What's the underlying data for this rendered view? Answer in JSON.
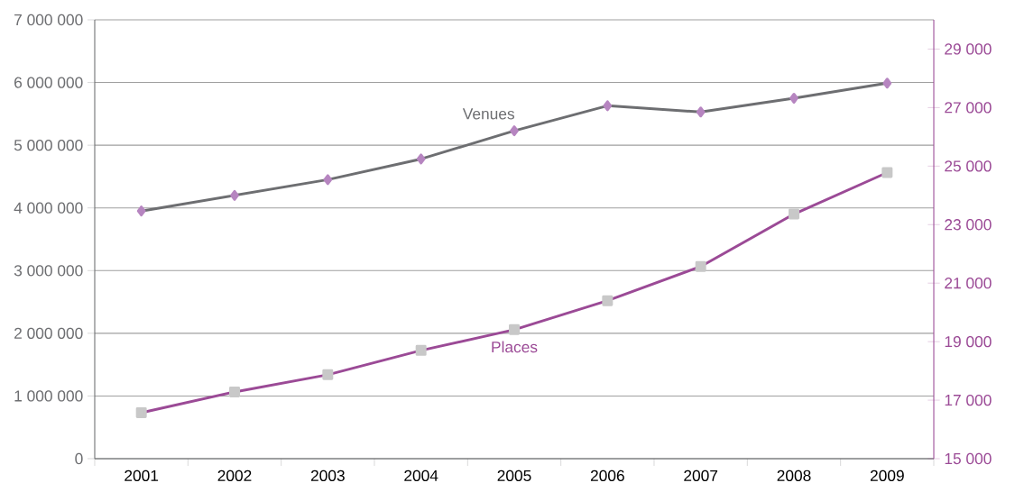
{
  "chart_data": {
    "type": "line",
    "categories": [
      "2001",
      "2002",
      "2003",
      "2004",
      "2005",
      "2006",
      "2007",
      "2008",
      "2009"
    ],
    "series": [
      {
        "name": "Venues",
        "color": "#6d6e71",
        "marker": "diamond",
        "values": [
          3950000,
          4200000,
          4450000,
          4780000,
          5230000,
          5630000,
          5530000,
          5750000,
          5990000
        ]
      },
      {
        "name": "Places",
        "color": "#9b4a96",
        "marker": "square",
        "axis": "y2",
        "values": [
          16570,
          17280,
          17870,
          18700,
          19410,
          20400,
          21570,
          23360,
          24780
        ]
      }
    ],
    "ylim": [
      0,
      7000000
    ],
    "yticks": [
      {
        "value": 0,
        "label": "0"
      },
      {
        "value": 1000000,
        "label": "1 000 000"
      },
      {
        "value": 2000000,
        "label": "2 000 000"
      },
      {
        "value": 3000000,
        "label": "3 000 000"
      },
      {
        "value": 4000000,
        "label": "4 000 000"
      },
      {
        "value": 5000000,
        "label": "5 000 000"
      },
      {
        "value": 6000000,
        "label": "6 000 000"
      },
      {
        "value": 7000000,
        "label": "7 000 000"
      }
    ],
    "y2lim": [
      15000,
      30000
    ],
    "y2ticks": [
      {
        "value": 15000,
        "label": "15 000"
      },
      {
        "value": 17000,
        "label": "17 000"
      },
      {
        "value": 19000,
        "label": "19 000"
      },
      {
        "value": 21000,
        "label": "21 000"
      },
      {
        "value": 23000,
        "label": "23 000"
      },
      {
        "value": 25000,
        "label": "25 000"
      },
      {
        "value": 27000,
        "label": "27 000"
      },
      {
        "value": 29000,
        "label": "29 000"
      }
    ],
    "grid": "y",
    "line_style": "solid"
  }
}
